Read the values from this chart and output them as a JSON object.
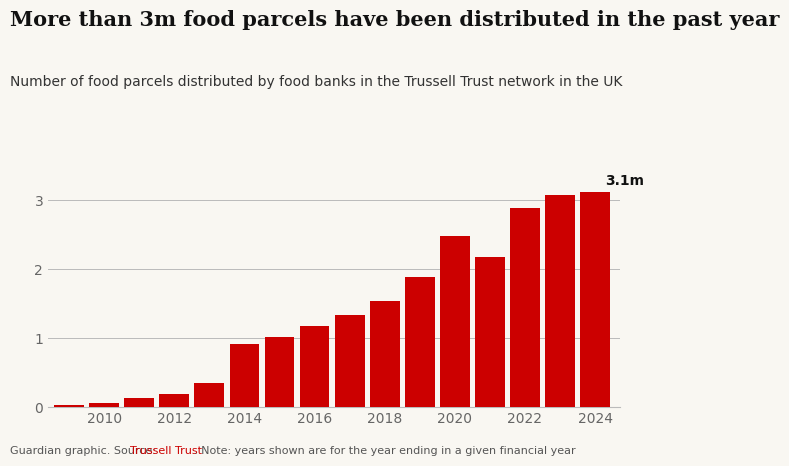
{
  "title": "More than 3m food parcels have been distributed in the past year",
  "subtitle": "Number of food parcels distributed by food banks in the Trussell Trust network in the UK",
  "footer_pre": "Guardian graphic. Source: ",
  "footer_source": "Trussell Trust",
  "footer_post": ". Note: years shown are for the year ending in a given financial year",
  "years": [
    2009,
    2010,
    2011,
    2012,
    2013,
    2014,
    2015,
    2016,
    2017,
    2018,
    2019,
    2020,
    2021,
    2022,
    2023,
    2024
  ],
  "values": [
    0.026,
    0.061,
    0.128,
    0.185,
    0.347,
    0.913,
    1.011,
    1.182,
    1.332,
    1.539,
    1.883,
    2.484,
    2.173,
    2.889,
    3.069,
    3.121
  ],
  "bar_color": "#cc0000",
  "annotation_text": "3.1m",
  "annotation_year": 2024,
  "annotation_value": 3.121,
  "ylim": [
    0,
    3.5
  ],
  "yticks": [
    0,
    1,
    2,
    3
  ],
  "xtick_years": [
    2010,
    2012,
    2014,
    2016,
    2018,
    2020,
    2022,
    2024
  ],
  "bg_color": "#f9f7f2",
  "grid_color": "#bbbbbb",
  "title_fontsize": 15,
  "subtitle_fontsize": 10,
  "footer_fontsize": 8,
  "tick_label_color": "#666666",
  "source_color": "#cc0000",
  "subtitle_color": "#333333"
}
